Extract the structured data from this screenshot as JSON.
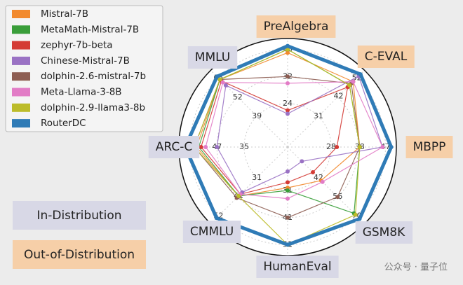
{
  "chart_data": {
    "type": "radar",
    "groups": [
      {
        "name": "In-Distribution",
        "color": "#d8d8e6"
      },
      {
        "name": "Out-of-Distribution",
        "color": "#f6cfa8"
      }
    ],
    "axes": [
      {
        "name": "PreAlgebra",
        "group": 1,
        "lim": [
          11.2,
          43.2
        ],
        "ticks": [
          24,
          32,
          40
        ]
      },
      {
        "name": "C-EVAL",
        "group": 1,
        "lim": [
          14.2,
          56.2
        ],
        "ticks": [
          31,
          42,
          52
        ]
      },
      {
        "name": "MBPP",
        "group": 1,
        "lim": [
          12.8,
          50.8
        ],
        "ticks": [
          28,
          38,
          47
        ]
      },
      {
        "name": "GSM8K",
        "group": 0,
        "lim": [
          19.6,
          75.6
        ],
        "ticks": [
          42,
          56,
          70
        ]
      },
      {
        "name": "HumanEval",
        "group": 0,
        "lim": [
          15,
          55
        ],
        "ticks": [
          31,
          41,
          51
        ]
      },
      {
        "name": "CMMLU",
        "group": 0,
        "lim": [
          14.2,
          56.2
        ],
        "ticks": [
          31,
          41,
          52
        ]
      },
      {
        "name": "ARC-C",
        "group": 0,
        "lim": [
          15.8,
          63.8
        ],
        "ticks": [
          35,
          47,
          59
        ]
      },
      {
        "name": "MMLU",
        "group": 0,
        "lim": [
          18.2,
          70.2
        ],
        "ticks": [
          39,
          52,
          65
        ]
      }
    ],
    "series": [
      {
        "name": "Mistral-7B",
        "color": "#f28a2e",
        "values": [
          39,
          50,
          38,
          44,
          30,
          41,
          56,
          64
        ]
      },
      {
        "name": "MetaMath-Mistral-7B",
        "color": "#3a9e3a",
        "values": [
          40,
          48,
          38,
          68,
          31,
          41,
          55,
          64
        ]
      },
      {
        "name": "zephyr-7b-beta",
        "color": "#d43b35",
        "values": [
          22,
          47,
          30,
          38,
          28,
          40,
          54,
          63
        ]
      },
      {
        "name": "Chinese-Mistral-7B",
        "color": "#9a72c4",
        "values": [
          21,
          53,
          46,
          30,
          24,
          39,
          47,
          60
        ]
      },
      {
        "name": "dolphin-2.6-mistral-7b",
        "color": "#8d5d52",
        "values": [
          32,
          49,
          38,
          56,
          41,
          42,
          57,
          64
        ]
      },
      {
        "name": "Meta-Llama-3-8B",
        "color": "#e27cc6",
        "values": [
          30,
          50,
          46,
          45,
          34,
          40,
          52,
          62
        ]
      },
      {
        "name": "dolphin-2.9-llama3-8b",
        "color": "#bcbc2a",
        "values": [
          40,
          48,
          38,
          69,
          51,
          41,
          57,
          64
        ]
      },
      {
        "name": "RouterDC",
        "color": "#2f7bb6",
        "values": [
          41,
          54,
          49,
          72,
          51,
          53,
          61,
          66
        ]
      }
    ],
    "watermark": "公众号 · 量子位"
  }
}
